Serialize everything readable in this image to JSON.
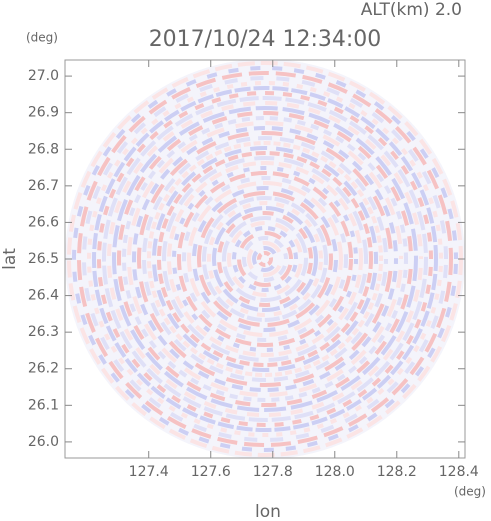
{
  "chart_data": {
    "type": "radar-ppi",
    "title": "2017/10/24 12:34:00",
    "subtitle": "ALT(km) 2.0",
    "x_label": "lon",
    "x_unit": "(deg)",
    "y_label": "lat",
    "y_unit": "(deg)",
    "xlim": [
      127.13,
      128.42
    ],
    "xticks": [
      127.4,
      127.6,
      127.8,
      {
        "value": 128.0,
        "label": "128.0"
      },
      128.2,
      128.4
    ],
    "ylim": [
      25.956,
      27.044
    ],
    "yticks": [
      {
        "value": 26.0,
        "label": "26.0"
      },
      26.1,
      26.2,
      26.3,
      26.4,
      26.5,
      26.6,
      26.7,
      26.8,
      26.9,
      {
        "value": 27.0,
        "label": "27.0"
      }
    ]
  }
}
